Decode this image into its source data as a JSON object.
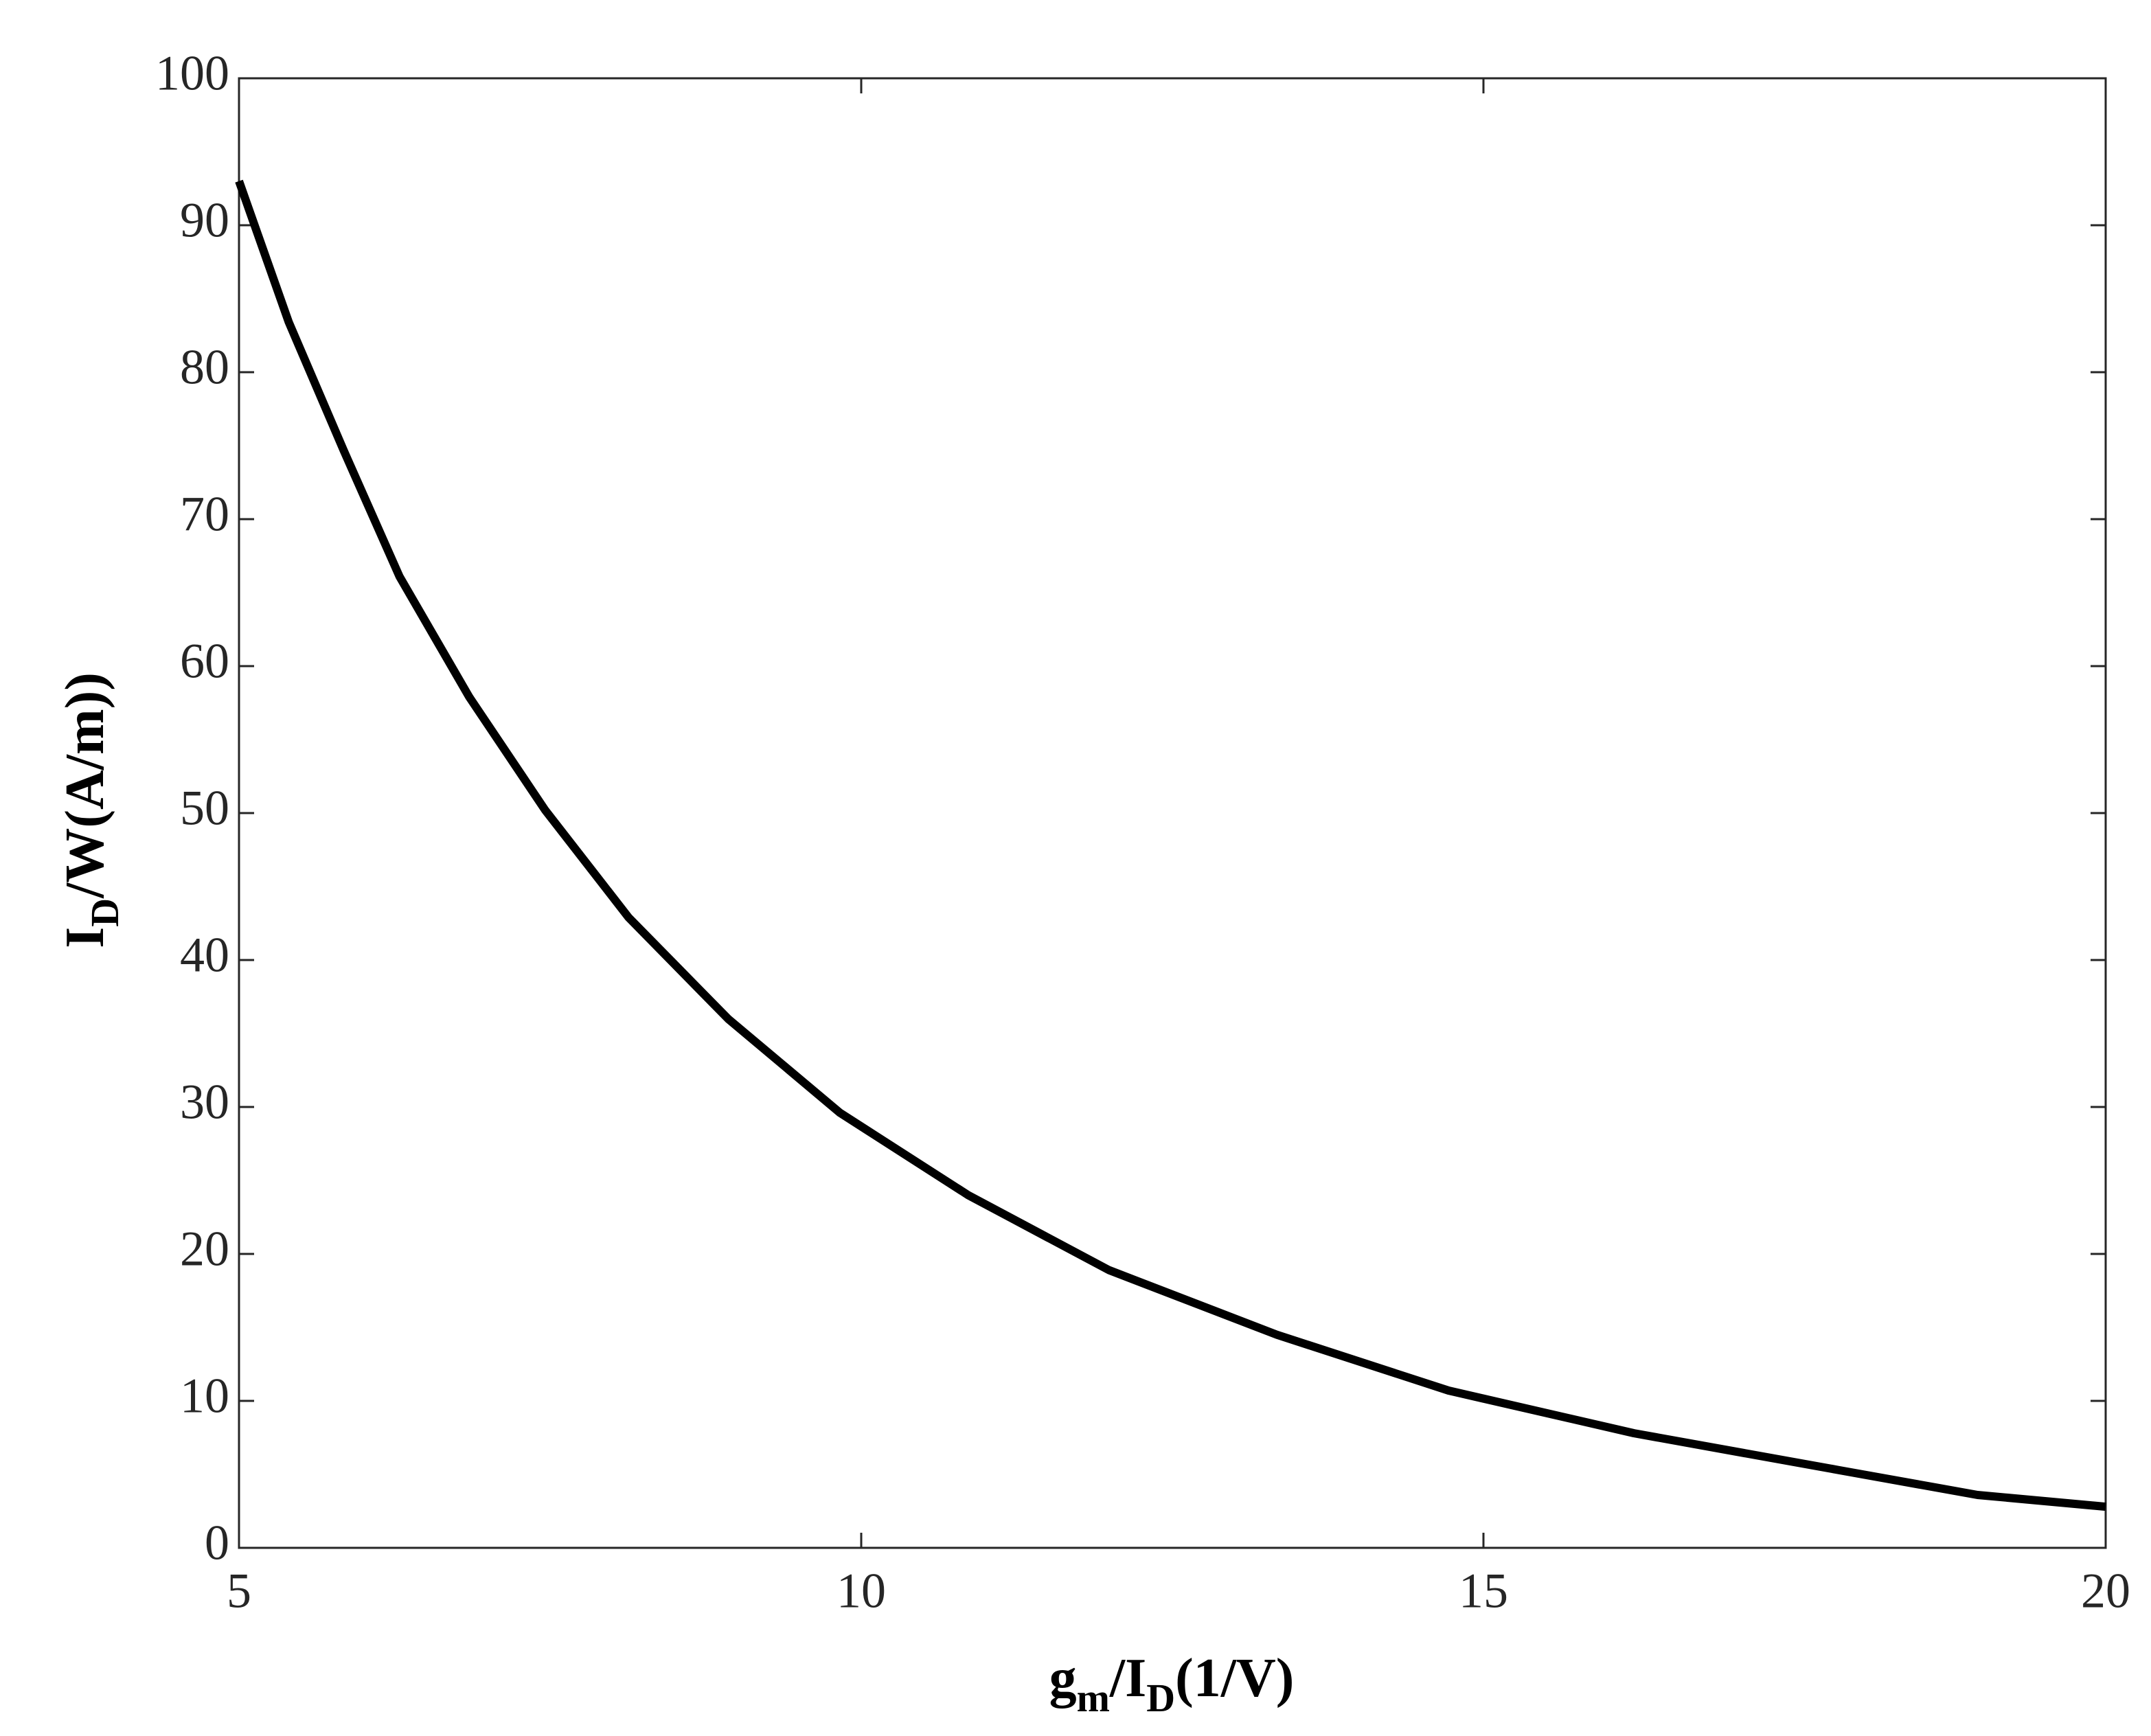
{
  "chart_data": {
    "type": "line",
    "xlabel": [
      "g",
      "m",
      "/I",
      "D",
      "(1/V)"
    ],
    "ylabel": [
      "I",
      "D",
      "/W(A/m))"
    ],
    "x": [
      5,
      5.4,
      5.84,
      6.29,
      6.85,
      7.46,
      8.13,
      8.93,
      9.83,
      10.86,
      11.99,
      13.34,
      14.72,
      16.21,
      17.85,
      18.97,
      20
    ],
    "values": [
      93.0,
      83.4,
      74.7,
      66.1,
      57.9,
      50.2,
      42.9,
      36.0,
      29.6,
      24.0,
      18.9,
      14.5,
      10.7,
      7.8,
      5.3,
      3.6,
      2.8
    ],
    "color": "#000000",
    "xlim": [
      5,
      20
    ],
    "xticks": [
      5,
      10,
      15,
      20
    ],
    "ylim": [
      0,
      100
    ],
    "yticks": [
      0,
      10,
      20,
      30,
      40,
      50,
      60,
      70,
      80,
      90,
      100
    ],
    "grid": false
  }
}
